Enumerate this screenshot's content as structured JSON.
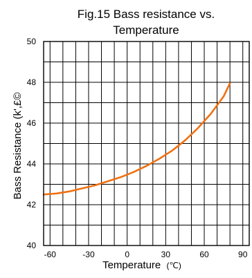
{
  "chart_data": {
    "type": "line",
    "title_lines": [
      "Fig.15 Bass resistance vs.",
      "Temperature"
    ],
    "xlabel": "Temperature",
    "xlabel_unit": "(℃)",
    "ylabel": "Bass Resistance  (k',£©",
    "xlim": [
      -65,
      95
    ],
    "ylim": [
      40,
      50
    ],
    "x_ticks": [
      -60,
      -30,
      0,
      30,
      60,
      90
    ],
    "x_tick_labels": [
      "-60",
      "-30",
      "0",
      "30",
      "60",
      "90"
    ],
    "x_grid": [
      -50,
      -40,
      -20,
      -10,
      10,
      20,
      40,
      50,
      70,
      80
    ],
    "y_ticks": [
      40,
      42,
      44,
      46,
      48,
      50
    ],
    "y_tick_labels": [
      "40",
      "42",
      "44",
      "46",
      "48",
      "50"
    ],
    "y_grid": [
      41,
      43,
      45,
      47,
      49
    ],
    "grid": true,
    "series": [
      {
        "color": "#f07010",
        "x": [
          -65,
          -55,
          -45,
          -35,
          -25,
          -15,
          -5,
          5,
          15,
          25,
          35,
          45,
          55,
          65,
          75,
          80
        ],
        "y": [
          42.5,
          42.55,
          42.65,
          42.8,
          42.95,
          43.15,
          43.35,
          43.6,
          43.9,
          44.25,
          44.65,
          45.15,
          45.75,
          46.45,
          47.3,
          47.95
        ]
      }
    ]
  }
}
